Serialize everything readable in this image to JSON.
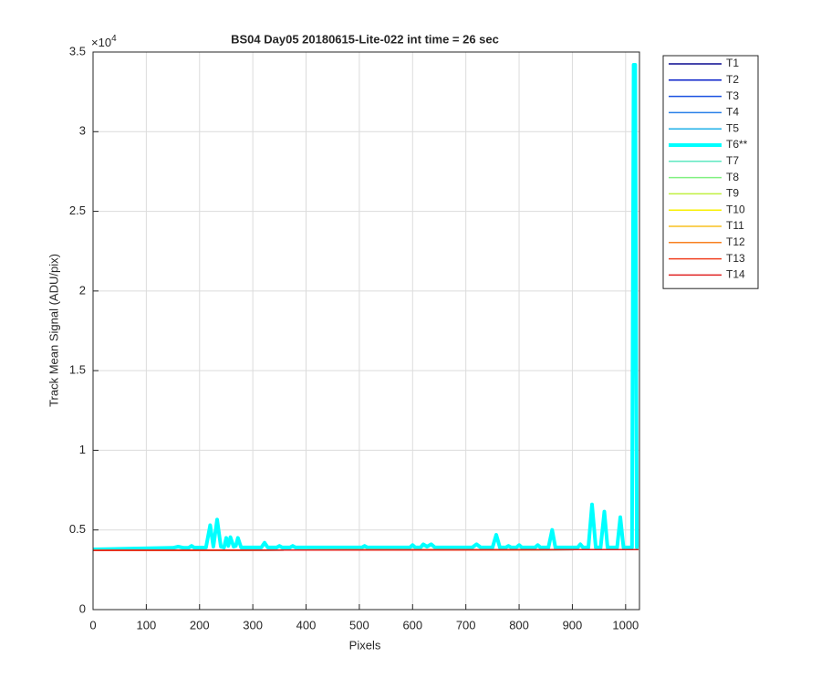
{
  "chart_data": {
    "type": "line",
    "title": "BS04 Day05 20180615-Lite-022 int time = 26 sec",
    "x_label": "Pixels",
    "y_label": "Track Mean Signal (ADU/pix)",
    "y_multiplier": {
      "base": "×10",
      "exponent": "4"
    },
    "xlim": [
      0,
      1026
    ],
    "ylim": [
      0,
      35000
    ],
    "xticks": [
      0,
      100,
      200,
      300,
      400,
      500,
      600,
      700,
      800,
      900,
      1000
    ],
    "yticks": [
      {
        "value": 0,
        "label": "0"
      },
      {
        "value": 5000,
        "label": "0.5"
      },
      {
        "value": 10000,
        "label": "1"
      },
      {
        "value": 15000,
        "label": "1.5"
      },
      {
        "value": 20000,
        "label": "2"
      },
      {
        "value": 25000,
        "label": "2.5"
      },
      {
        "value": 30000,
        "label": "3"
      },
      {
        "value": 35000,
        "label": "3.5"
      }
    ],
    "grid": true,
    "legend": "outside-right",
    "series": [
      {
        "name": "T1",
        "color": "#0a0a90",
        "width": 1.5,
        "x": [
          0,
          1024
        ],
        "values": [
          3720,
          3770
        ]
      },
      {
        "name": "T2",
        "color": "#0a22c8",
        "width": 1.5,
        "x": [
          0,
          1024
        ],
        "values": [
          3720,
          3770
        ]
      },
      {
        "name": "T3",
        "color": "#1a50e0",
        "width": 1.5,
        "x": [
          0,
          1024
        ],
        "values": [
          3720,
          3770
        ]
      },
      {
        "name": "T4",
        "color": "#2a80e8",
        "width": 1.5,
        "x": [
          0,
          1024
        ],
        "values": [
          3720,
          3770
        ]
      },
      {
        "name": "T5",
        "color": "#20b0e8",
        "width": 1.5,
        "x": [
          0,
          1024
        ],
        "values": [
          3720,
          3770
        ]
      },
      {
        "name": "T6**",
        "color": "#00ffff",
        "width": 4,
        "x": [
          0,
          150,
          160,
          170,
          180,
          185,
          190,
          212,
          220,
          226,
          233,
          240,
          246,
          250,
          254,
          258,
          264,
          268,
          272,
          278,
          316,
          322,
          328,
          345,
          350,
          355,
          370,
          375,
          380,
          505,
          510,
          515,
          595,
          600,
          605,
          615,
          620,
          627,
          635,
          642,
          712,
          720,
          728,
          750,
          757,
          764,
          775,
          780,
          785,
          795,
          800,
          805,
          830,
          835,
          840,
          855,
          862,
          868,
          910,
          915,
          920,
          930,
          937,
          944,
          953,
          960,
          966,
          984,
          990,
          996,
          1012,
          1015,
          1018,
          1021,
          1024
        ],
        "values": [
          3780,
          3880,
          3950,
          3880,
          3890,
          4000,
          3890,
          3900,
          5300,
          3950,
          5650,
          3950,
          3900,
          4500,
          4000,
          4550,
          3950,
          4000,
          4500,
          3900,
          3900,
          4200,
          3900,
          3900,
          4000,
          3900,
          3900,
          4000,
          3900,
          3900,
          4000,
          3900,
          3900,
          4050,
          3900,
          3900,
          4100,
          3950,
          4100,
          3900,
          3900,
          4100,
          3900,
          3900,
          4700,
          3900,
          3900,
          4000,
          3900,
          3900,
          4050,
          3900,
          3900,
          4050,
          3900,
          3900,
          5000,
          3900,
          3900,
          4100,
          3900,
          3900,
          6600,
          3900,
          3900,
          6150,
          3900,
          3900,
          5800,
          3900,
          3900,
          34200,
          34200,
          3900,
          3900
        ]
      },
      {
        "name": "T7",
        "color": "#5ee8c0",
        "width": 1.5,
        "x": [
          0,
          1024
        ],
        "values": [
          3720,
          3770
        ]
      },
      {
        "name": "T8",
        "color": "#80f080",
        "width": 1.5,
        "x": [
          0,
          1024
        ],
        "values": [
          3720,
          3770
        ]
      },
      {
        "name": "T9",
        "color": "#c0f040",
        "width": 1.5,
        "x": [
          0,
          1024
        ],
        "values": [
          3720,
          3770
        ]
      },
      {
        "name": "T10",
        "color": "#f8f000",
        "width": 1.5,
        "x": [
          0,
          1024
        ],
        "values": [
          3720,
          3770
        ]
      },
      {
        "name": "T11",
        "color": "#f8c020",
        "width": 1.5,
        "x": [
          0,
          1024
        ],
        "values": [
          3720,
          3770
        ]
      },
      {
        "name": "T12",
        "color": "#f88020",
        "width": 1.5,
        "x": [
          0,
          1024
        ],
        "values": [
          3720,
          3770
        ]
      },
      {
        "name": "T13",
        "color": "#f04020",
        "width": 1.5,
        "x": [
          0,
          1024
        ],
        "values": [
          3720,
          3770
        ]
      },
      {
        "name": "T14",
        "color": "#e02020",
        "width": 1.5,
        "x": [
          0,
          1024
        ],
        "values": [
          3720,
          3770
        ]
      }
    ]
  }
}
